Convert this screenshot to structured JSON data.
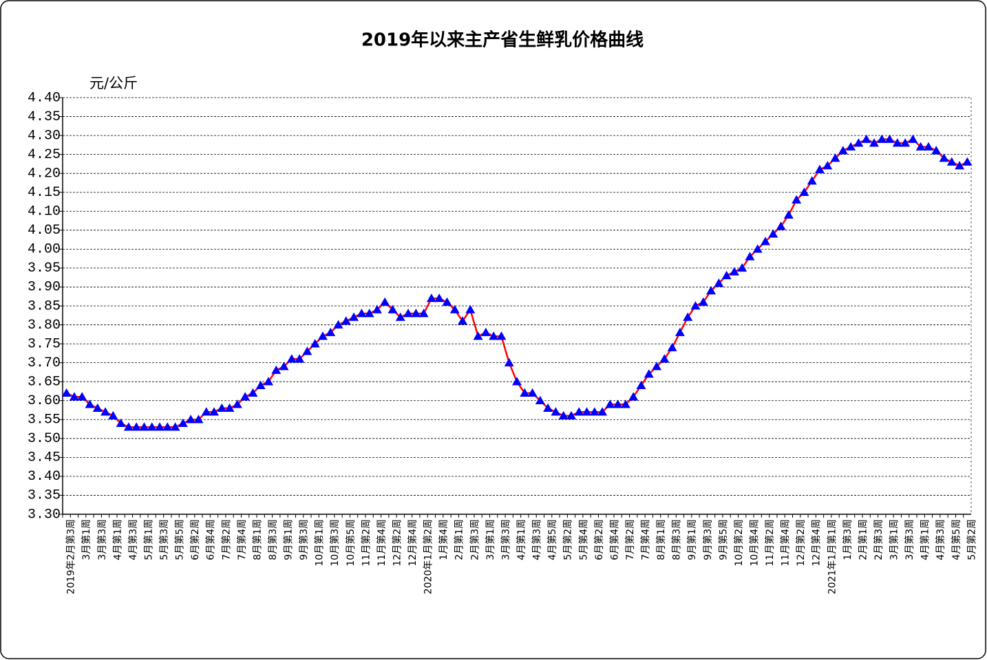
{
  "chart_data": {
    "type": "line",
    "title": "2019年以来主产省生鲜乳价格曲线",
    "y_label": "元/公斤",
    "categories": [
      "2019年2月第3周",
      null,
      "3月第1周",
      null,
      "3月第3周",
      null,
      "4月第1周",
      null,
      "4月第3周",
      null,
      "5月第1周",
      null,
      "5月第3周",
      null,
      "5月第5周",
      null,
      "6月第2周",
      null,
      "6月第4周",
      null,
      "7月第2周",
      null,
      "7月第4周",
      null,
      "8月第1周",
      null,
      "8月第3周",
      null,
      "9月第1周",
      null,
      "9月第3周",
      null,
      "10月第1周",
      null,
      "10月第3周",
      null,
      "10月第5周",
      null,
      "11月第2周",
      null,
      "11月第4周",
      null,
      "12月第2周",
      null,
      "12月第4周",
      null,
      "2020年1月第2周",
      null,
      "1月第4周",
      null,
      "2月第1周",
      null,
      "2月第3周",
      null,
      "3月第1周",
      null,
      "3月第3周",
      null,
      "4月第1周",
      null,
      "4月第3周",
      null,
      "4月第5周",
      null,
      "5月第2周",
      null,
      "5月第4周",
      null,
      "6月第2周",
      null,
      "6月第4周",
      null,
      "7月第2周",
      null,
      "7月第4周",
      null,
      "8月第1周",
      null,
      "8月第3周",
      null,
      "9月第1周",
      null,
      "9月第3周",
      null,
      "9月第5周",
      null,
      "10月第2周",
      null,
      "10月第4周",
      null,
      "11月第2周",
      null,
      "11月第4周",
      null,
      "12月第2周",
      null,
      "12月第4周",
      null,
      "2021年1月第1周",
      null,
      "1月第3周",
      null,
      "2月第1周",
      null,
      "2月第3周",
      null,
      "3月第1周",
      null,
      "3月第3周",
      null,
      "4月第1周",
      null,
      "4月第3周",
      null,
      "4月第5周",
      null,
      "5月第2周"
    ],
    "values": [
      3.62,
      3.61,
      3.61,
      3.59,
      3.58,
      3.57,
      3.56,
      3.54,
      3.53,
      3.53,
      3.53,
      3.53,
      3.53,
      3.53,
      3.53,
      3.54,
      3.55,
      3.55,
      3.57,
      3.57,
      3.58,
      3.58,
      3.59,
      3.61,
      3.62,
      3.64,
      3.65,
      3.68,
      3.69,
      3.71,
      3.71,
      3.73,
      3.75,
      3.77,
      3.78,
      3.8,
      3.81,
      3.82,
      3.83,
      3.83,
      3.84,
      3.86,
      3.84,
      3.82,
      3.83,
      3.83,
      3.83,
      3.87,
      3.87,
      3.86,
      3.84,
      3.81,
      3.84,
      3.77,
      3.78,
      3.77,
      3.77,
      3.7,
      3.65,
      3.62,
      3.62,
      3.6,
      3.58,
      3.57,
      3.56,
      3.56,
      3.57,
      3.57,
      3.57,
      3.57,
      3.59,
      3.59,
      3.59,
      3.61,
      3.64,
      3.67,
      3.69,
      3.71,
      3.74,
      3.78,
      3.82,
      3.85,
      3.86,
      3.89,
      3.91,
      3.93,
      3.94,
      3.95,
      3.98,
      4.0,
      4.02,
      4.04,
      4.06,
      4.09,
      4.13,
      4.15,
      4.18,
      4.21,
      4.22,
      4.24,
      4.26,
      4.27,
      4.28,
      4.29,
      4.28,
      4.29,
      4.29,
      4.28,
      4.28,
      4.29,
      4.27,
      4.27,
      4.26,
      4.24,
      4.23,
      4.22,
      4.23
    ],
    "line_color": "#ff0000",
    "marker_color": "#0000ff",
    "marker": "triangle",
    "ylim": [
      3.3,
      4.4
    ],
    "yticks": [
      {
        "value": 3.3,
        "label": "3.30"
      },
      3.35,
      {
        "value": 3.4,
        "label": "3.40"
      },
      3.45,
      {
        "value": 3.5,
        "label": "3.50"
      },
      3.55,
      {
        "value": 3.6,
        "label": "3.60"
      },
      3.65,
      {
        "value": 3.7,
        "label": "3.70"
      },
      3.75,
      {
        "value": 3.8,
        "label": "3.80"
      },
      3.85,
      {
        "value": 3.9,
        "label": "3.90"
      },
      3.95,
      {
        "value": 4.0,
        "label": "4.00"
      },
      4.05,
      {
        "value": 4.1,
        "label": "4.10"
      },
      4.15,
      {
        "value": 4.2,
        "label": "4.20"
      },
      4.25,
      {
        "value": 4.3,
        "label": "4.30"
      },
      4.35,
      {
        "value": 4.4,
        "label": "4.40"
      }
    ],
    "grid": true
  }
}
